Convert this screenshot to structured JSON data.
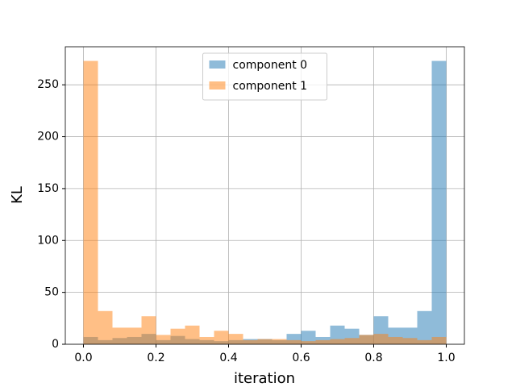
{
  "chart_data": {
    "type": "histogram",
    "xlabel": "iteration",
    "ylabel": "KL",
    "bins": [
      0,
      0.04,
      0.08,
      0.12,
      0.16,
      0.2,
      0.24,
      0.28,
      0.32,
      0.36,
      0.4,
      0.44,
      0.48,
      0.52,
      0.56,
      0.6,
      0.64,
      0.68,
      0.72,
      0.76,
      0.8,
      0.84,
      0.88,
      0.92,
      0.96,
      1
    ],
    "series": [
      {
        "name": "component 0",
        "color": "#1f77b4",
        "values": [
          7,
          4,
          6,
          7,
          10,
          4,
          8,
          5,
          4,
          3,
          4,
          5,
          5,
          4,
          10,
          13,
          7,
          18,
          15,
          9,
          27,
          16,
          16,
          32,
          273
        ]
      },
      {
        "name": "component 1",
        "color": "#ff7f0e",
        "values": [
          273,
          32,
          16,
          16,
          27,
          9,
          15,
          18,
          7,
          13,
          10,
          4,
          5,
          5,
          4,
          3,
          4,
          5,
          6,
          9,
          10,
          7,
          6,
          4,
          7
        ]
      }
    ],
    "alpha": 0.5,
    "xlim": [
      -0.05,
      1.05
    ],
    "ylim": [
      0,
      286.65
    ],
    "xticks": [
      {
        "value": 0,
        "label": "0.0"
      },
      0.2,
      0.4,
      0.6,
      0.8,
      {
        "value": 1,
        "label": "1.0"
      }
    ],
    "yticks": [
      0,
      50,
      100,
      150,
      200,
      250
    ],
    "grid": true,
    "legend": "upper center"
  }
}
